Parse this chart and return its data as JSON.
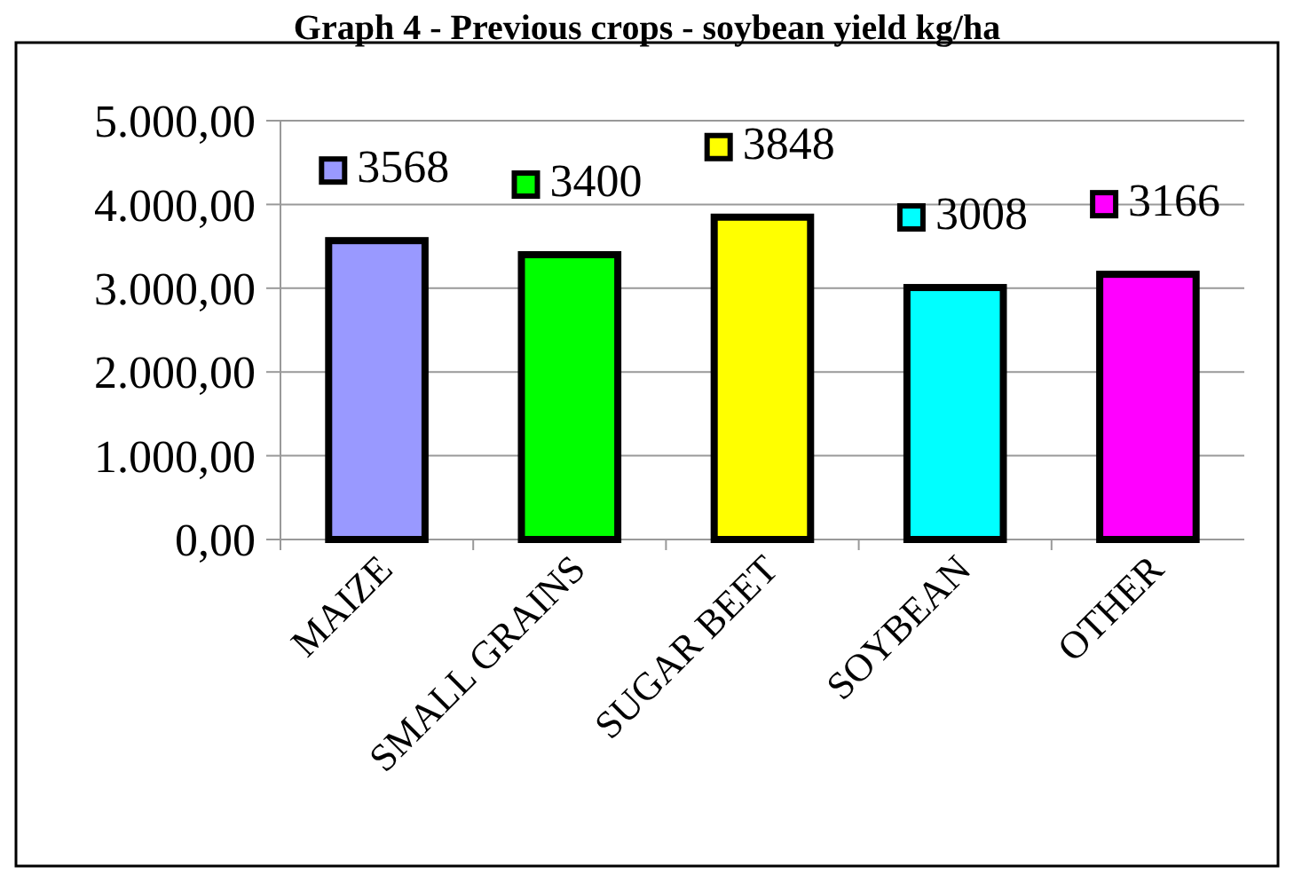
{
  "chart_data": {
    "type": "bar",
    "title": "Graph 4 - Previous crops - soybean yield kg/ha",
    "categories": [
      "MAIZE",
      "SMALL GRAINS",
      "SUGAR BEET",
      "SOYBEAN",
      "OTHER"
    ],
    "values": [
      3568,
      3400,
      3848,
      3008,
      3166
    ],
    "colors": [
      "#9999ff",
      "#00ff00",
      "#ffff00",
      "#00ffff",
      "#ff00ff"
    ],
    "ylim": [
      0,
      5000
    ],
    "yticks": [
      {
        "value": 0,
        "label": "0,00"
      },
      {
        "value": 1000,
        "label": "1.000,00"
      },
      {
        "value": 2000,
        "label": "2.000,00"
      },
      {
        "value": 3000,
        "label": "3.000,00"
      },
      {
        "value": 4000,
        "label": "4.000,00"
      },
      {
        "value": 5000,
        "label": "5.000,00"
      }
    ],
    "grid": "y",
    "data_labels": true
  }
}
